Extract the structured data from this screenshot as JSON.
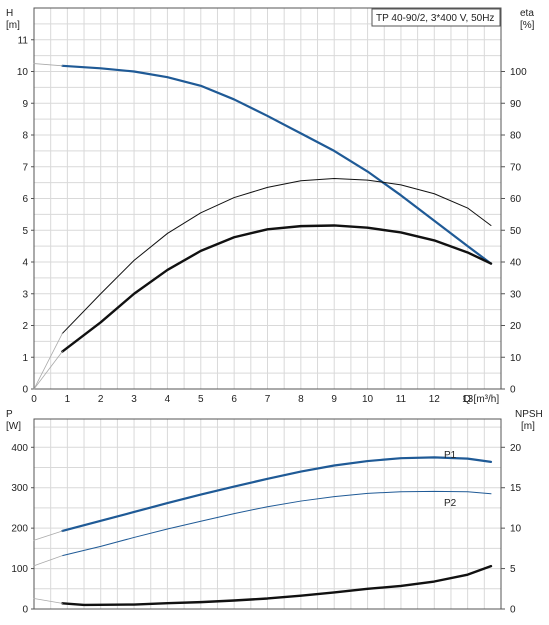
{
  "chart_data": [
    {
      "type": "line",
      "panel": "top",
      "legend_box": "TP 40-90/2, 3*400 V, 50Hz",
      "x_axis": {
        "label": "Q [m³/h]",
        "min": 0,
        "max": 14,
        "ticks": [
          0,
          1,
          2,
          3,
          4,
          5,
          6,
          7,
          8,
          9,
          10,
          11,
          12,
          13
        ]
      },
      "y_left": {
        "label_line1": "H",
        "label_line2": "[m]",
        "min": 0,
        "max": 12,
        "ticks": [
          0,
          1,
          2,
          3,
          4,
          5,
          6,
          7,
          8,
          9,
          10,
          11
        ]
      },
      "y_right": {
        "label_line1": "eta",
        "label_line2": "[%]",
        "min": 0,
        "max": 120,
        "ticks": [
          0,
          10,
          20,
          30,
          40,
          50,
          60,
          70,
          80,
          90,
          100
        ]
      },
      "grid": true,
      "series": [
        {
          "axis": "left",
          "color": "#1f5a96",
          "width": 2.2,
          "points": [
            [
              0.85,
              10.18
            ],
            [
              2,
              10.1
            ],
            [
              3,
              10.0
            ],
            [
              4,
              9.82
            ],
            [
              5,
              9.55
            ],
            [
              6,
              9.12
            ],
            [
              7,
              8.6
            ],
            [
              8,
              8.05
            ],
            [
              9,
              7.5
            ],
            [
              10,
              6.85
            ],
            [
              11,
              6.1
            ],
            [
              12,
              5.3
            ],
            [
              13,
              4.5
            ],
            [
              13.7,
              3.95
            ]
          ]
        },
        {
          "axis": "right",
          "color": "#111111",
          "width": 2.4,
          "points": [
            [
              0.85,
              11.8
            ],
            [
              2,
              21
            ],
            [
              3,
              30
            ],
            [
              4,
              37.5
            ],
            [
              5,
              43.5
            ],
            [
              6,
              47.8
            ],
            [
              7,
              50.3
            ],
            [
              8,
              51.3
            ],
            [
              9,
              51.5
            ],
            [
              10,
              50.8
            ],
            [
              11,
              49.3
            ],
            [
              12,
              46.8
            ],
            [
              13,
              43
            ],
            [
              13.7,
              39.5
            ]
          ]
        },
        {
          "axis": "right",
          "color": "#111111",
          "width": 1.0,
          "points": [
            [
              0.85,
              17.5
            ],
            [
              2,
              30
            ],
            [
              3,
              40.5
            ],
            [
              4,
              49
            ],
            [
              5,
              55.5
            ],
            [
              6,
              60.3
            ],
            [
              7,
              63.5
            ],
            [
              8,
              65.6
            ],
            [
              9,
              66.3
            ],
            [
              10,
              65.8
            ],
            [
              11,
              64.3
            ],
            [
              12,
              61.5
            ],
            [
              13,
              57
            ],
            [
              13.7,
              51.5
            ]
          ]
        },
        {
          "axis": "left",
          "color": "#aaaaaa",
          "width": 0.8,
          "points": [
            [
              0,
              10.25
            ],
            [
              0.85,
              10.18
            ]
          ]
        },
        {
          "axis": "right",
          "color": "#aaaaaa",
          "width": 0.8,
          "points": [
            [
              0,
              0
            ],
            [
              0.85,
              11.8
            ]
          ]
        },
        {
          "axis": "right",
          "color": "#aaaaaa",
          "width": 0.8,
          "points": [
            [
              0,
              0
            ],
            [
              0.85,
              17.5
            ]
          ]
        }
      ]
    },
    {
      "type": "line",
      "panel": "bottom",
      "x_axis": {
        "label": "",
        "min": 0,
        "max": 14,
        "ticks": []
      },
      "y_left": {
        "label_line1": "P",
        "label_line2": "[W]",
        "min": 0,
        "max": 470,
        "ticks": [
          0,
          100,
          200,
          300,
          400
        ]
      },
      "y_right": {
        "label_line1": "NPSH",
        "label_line2": "[m]",
        "min": 0,
        "max": 23.5,
        "ticks": [
          0,
          5,
          10,
          15,
          20
        ]
      },
      "grid": true,
      "series": [
        {
          "name": "P1",
          "axis": "left",
          "color": "#1f5a96",
          "width": 2.2,
          "points": [
            [
              0.85,
              193
            ],
            [
              2,
              218
            ],
            [
              3,
              240
            ],
            [
              4,
              262
            ],
            [
              5,
              283
            ],
            [
              6,
              303
            ],
            [
              7,
              322
            ],
            [
              8,
              340
            ],
            [
              9,
              355
            ],
            [
              10,
              366
            ],
            [
              11,
              373
            ],
            [
              12,
              375
            ],
            [
              13,
              372
            ],
            [
              13.7,
              364
            ]
          ]
        },
        {
          "name": "P2",
          "axis": "left",
          "color": "#1f5a96",
          "width": 1.0,
          "points": [
            [
              0.85,
              132
            ],
            [
              2,
              155
            ],
            [
              3,
              177
            ],
            [
              4,
              198
            ],
            [
              5,
              217
            ],
            [
              6,
              236
            ],
            [
              7,
              253
            ],
            [
              8,
              267
            ],
            [
              9,
              278
            ],
            [
              10,
              286
            ],
            [
              11,
              290
            ],
            [
              12,
              291
            ],
            [
              13,
              290
            ],
            [
              13.7,
              285
            ]
          ]
        },
        {
          "axis": "right",
          "color": "#111111",
          "width": 2.4,
          "points": [
            [
              0.85,
              0.7
            ],
            [
              1.5,
              0.5
            ],
            [
              3,
              0.55
            ],
            [
              4,
              0.72
            ],
            [
              5,
              0.85
            ],
            [
              6,
              1.05
            ],
            [
              7,
              1.3
            ],
            [
              8,
              1.65
            ],
            [
              9,
              2.05
            ],
            [
              10,
              2.5
            ],
            [
              11,
              2.85
            ],
            [
              12,
              3.4
            ],
            [
              13,
              4.25
            ],
            [
              13.7,
              5.3
            ]
          ]
        },
        {
          "axis": "left",
          "color": "#aaaaaa",
          "width": 0.8,
          "points": [
            [
              0,
              170
            ],
            [
              0.85,
              193
            ]
          ]
        },
        {
          "axis": "left",
          "color": "#aaaaaa",
          "width": 0.8,
          "points": [
            [
              0,
              107
            ],
            [
              0.85,
              132
            ]
          ]
        },
        {
          "axis": "right",
          "color": "#aaaaaa",
          "width": 0.8,
          "points": [
            [
              0,
              1.3
            ],
            [
              0.85,
              0.7
            ]
          ]
        }
      ]
    }
  ]
}
